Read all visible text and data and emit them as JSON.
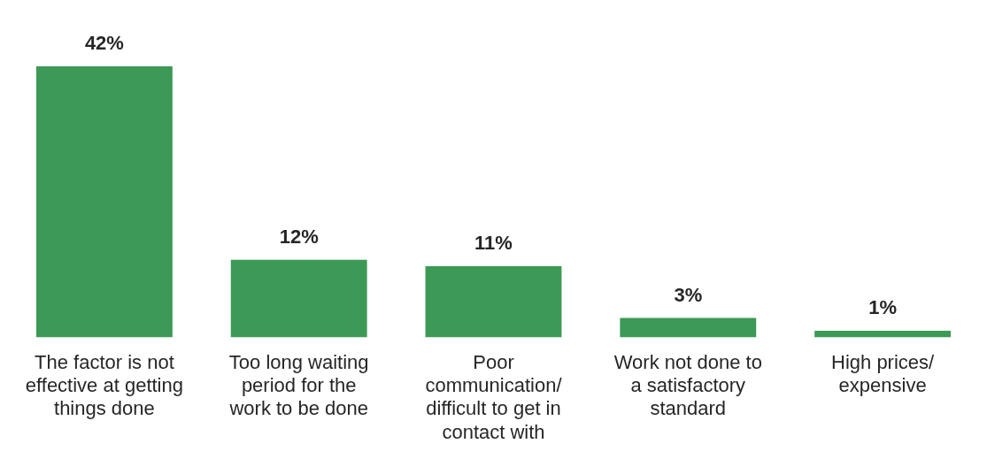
{
  "chart_data": {
    "type": "bar",
    "categories": [
      "The factor is not effective at getting things done",
      "Too long waiting period for the work to be done",
      "Poor communication/ difficult to get in contact with",
      "Work not done to a satisfactory standard",
      "High prices/ expensive"
    ],
    "series": [
      {
        "color": "#3d9956",
        "values": [
          42,
          12,
          11,
          3,
          1
        ],
        "value_labels": [
          "42%",
          "12%",
          "11%",
          "3%",
          "1%"
        ]
      }
    ],
    "grid": false,
    "legend": false
  }
}
